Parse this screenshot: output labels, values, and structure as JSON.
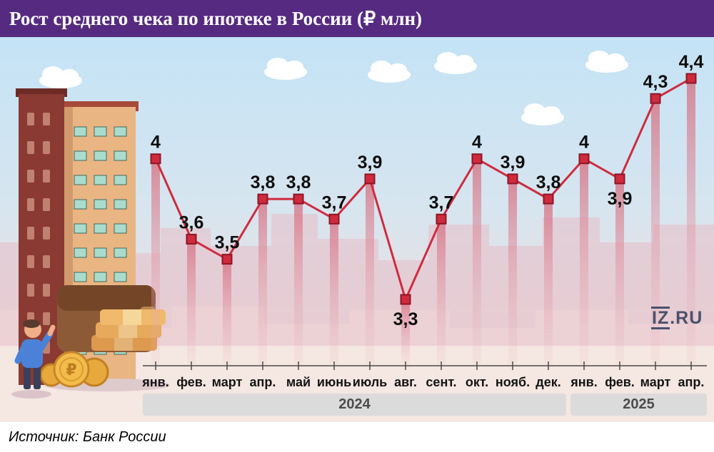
{
  "header": {
    "title": "Рост среднего чека по ипотеке в России (₽ млн)"
  },
  "chart_data": {
    "type": "line",
    "title": "Рост среднего чека по ипотеке в России (₽ млн)",
    "categories": [
      "янв.",
      "фев.",
      "март",
      "апр.",
      "май",
      "июнь",
      "июль",
      "авг.",
      "сент.",
      "окт.",
      "нояб.",
      "дек.",
      "янв.",
      "фев.",
      "март",
      "апр."
    ],
    "values": [
      4,
      3.6,
      3.5,
      3.8,
      3.8,
      3.7,
      3.9,
      3.3,
      3.7,
      4,
      3.9,
      3.8,
      4,
      3.9,
      4.3,
      4.4
    ],
    "value_labels": [
      "4",
      "3,6",
      "3,5",
      "3,8",
      "3,8",
      "3,7",
      "3,9",
      "3,3",
      "3,7",
      "4",
      "3,9",
      "3,8",
      "4",
      "3,9",
      "4,3",
      "4,4"
    ],
    "label_below": [
      false,
      false,
      false,
      false,
      false,
      false,
      false,
      true,
      false,
      false,
      false,
      false,
      false,
      true,
      false,
      false
    ],
    "ylim": [
      3.3,
      4.4
    ],
    "year_groups": [
      {
        "label": "2024"
      },
      {
        "label": "2025"
      }
    ],
    "legend": [],
    "grid": false,
    "line_color": "#cf2b3d",
    "marker_color": "#cf2b3d",
    "marker_edge": "#8e1527",
    "bar_color": "#d66a7c",
    "xlabel": "",
    "ylabel": ""
  },
  "logo": {
    "iz": "IZ",
    "ru": ".RU"
  },
  "icons": {
    "ruble_coin": "₽"
  },
  "footer": {
    "source": "Источник: Банк России"
  }
}
